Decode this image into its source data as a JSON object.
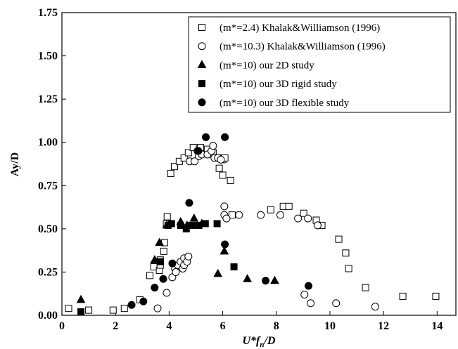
{
  "chart_data": {
    "type": "scatter",
    "xlabel": [
      "U*f",
      "n",
      "/D"
    ],
    "ylabel": "Ay/D",
    "xlim": [
      0,
      14.7
    ],
    "ylim": [
      0,
      1.75
    ],
    "xticks": [
      0,
      2,
      4,
      6,
      8,
      10,
      12,
      14
    ],
    "yticks": [
      {
        "value": 0,
        "label": "0.00"
      },
      {
        "value": 0.25,
        "label": "0.25"
      },
      {
        "value": 0.5,
        "label": "0.50"
      },
      {
        "value": 0.75,
        "label": "0.75"
      },
      {
        "value": 1,
        "label": "1.00"
      },
      {
        "value": 1.25,
        "label": "1.25"
      },
      {
        "value": 1.5,
        "label": "1.50"
      },
      {
        "value": 1.75,
        "label": "1.75"
      }
    ],
    "legend": "top-right",
    "series": [
      {
        "name": "(m*=2.4) Khalak&Williamson (1996)",
        "color": "#000000",
        "marker": "square-open",
        "x": [
          0.25,
          1.0,
          1.91,
          2.33,
          2.91,
          3.28,
          3.43,
          3.64,
          3.67,
          3.67,
          3.8,
          3.83,
          3.9,
          3.93,
          4.06,
          4.2,
          4.38,
          4.56,
          4.72,
          4.9,
          5.17,
          5.43,
          5.64,
          5.82,
          5.87,
          6.0,
          6.08,
          6.0,
          6.29,
          6.35,
          7.79,
          8.26,
          8.47,
          9.02,
          9.49,
          9.7,
          10.33,
          10.59,
          10.7,
          11.33,
          12.72,
          13.95
        ],
        "values": [
          0.04,
          0.03,
          0.03,
          0.04,
          0.09,
          0.23,
          0.28,
          0.26,
          0.32,
          0.29,
          0.37,
          0.42,
          0.53,
          0.57,
          0.82,
          0.86,
          0.89,
          0.91,
          0.94,
          0.97,
          0.97,
          0.96,
          0.94,
          0.91,
          0.85,
          0.9,
          0.91,
          0.81,
          0.78,
          0.58,
          0.61,
          0.63,
          0.63,
          0.59,
          0.55,
          0.52,
          0.44,
          0.36,
          0.27,
          0.16,
          0.11,
          0.11
        ]
      },
      {
        "name": "(m*=10.3) Khalak&Williamson (1996)",
        "color": "#000000",
        "marker": "circle-open",
        "x": [
          3.57,
          3.91,
          4.12,
          4.22,
          4.25,
          4.33,
          4.43,
          4.51,
          4.56,
          4.56,
          4.67,
          4.72,
          4.77,
          4.95,
          5.06,
          5.11,
          5.22,
          5.43,
          5.58,
          5.64,
          5.69,
          5.82,
          5.93,
          6.06,
          6.06,
          6.14,
          6.61,
          7.42,
          8.15,
          8.81,
          9.18,
          9.54,
          9.05,
          9.28,
          10.23,
          11.69
        ],
        "values": [
          0.04,
          0.13,
          0.22,
          0.27,
          0.25,
          0.29,
          0.31,
          0.27,
          0.33,
          0.29,
          0.31,
          0.34,
          0.89,
          0.89,
          0.95,
          0.92,
          0.93,
          0.93,
          0.95,
          0.98,
          0.91,
          0.91,
          0.9,
          0.63,
          0.58,
          0.56,
          0.58,
          0.58,
          0.58,
          0.56,
          0.56,
          0.52,
          0.12,
          0.07,
          0.07,
          0.05
        ]
      },
      {
        "name": "(m*=10) our 2D study",
        "color": "#000000",
        "marker": "triangle",
        "x": [
          0.71,
          3.46,
          3.64,
          3.91,
          4.43,
          4.67,
          4.93,
          5.22,
          6.06,
          5.82,
          6.92,
          7.94
        ],
        "values": [
          0.09,
          0.32,
          0.42,
          0.52,
          0.54,
          0.52,
          0.56,
          0.53,
          0.37,
          0.24,
          0.21,
          0.2
        ]
      },
      {
        "name": "(m*=10) our 3D rigid study",
        "color": "#000000",
        "marker": "square",
        "x": [
          0.71,
          3.67,
          3.96,
          4.09,
          4.43,
          4.64,
          4.85,
          5.11,
          5.35,
          5.79,
          6.42
        ],
        "values": [
          0.02,
          0.31,
          0.52,
          0.53,
          0.52,
          0.5,
          0.52,
          0.52,
          0.53,
          0.53,
          0.28
        ]
      },
      {
        "name": "(m*=10) our 3D flexible study",
        "color": "#000000",
        "marker": "circle",
        "x": [
          2.6,
          3.04,
          3.46,
          3.78,
          4.12,
          4.75,
          5.09,
          5.37,
          6.08,
          6.08,
          7.6,
          9.2
        ],
        "values": [
          0.06,
          0.08,
          0.16,
          0.21,
          0.3,
          0.65,
          0.95,
          1.03,
          1.03,
          0.41,
          0.2,
          0.17
        ]
      }
    ]
  }
}
